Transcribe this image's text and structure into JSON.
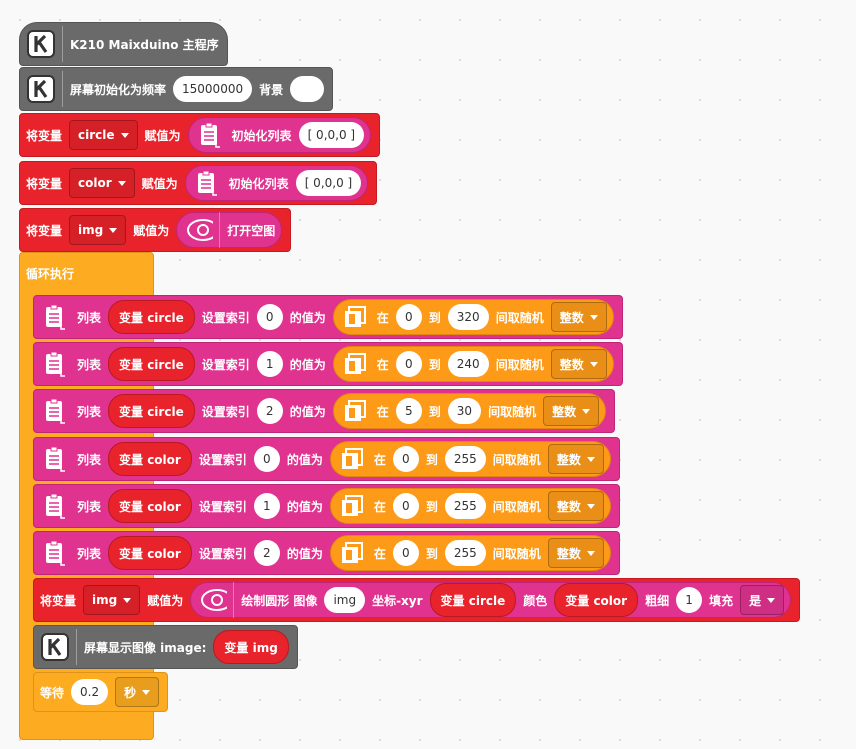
{
  "program": {
    "hat": [
      "K210 Maixduino 主程序"
    ],
    "statements": [
      [
        "屏幕初始化为频率",
        15000000,
        "背景"
      ],
      [
        "将变量",
        "circle",
        "赋值为",
        "初始化列表",
        "[ 0,0,0 ]"
      ],
      [
        "将变量",
        "color",
        "赋值为",
        "初始化列表",
        "[ 0,0,0 ]"
      ],
      [
        "将变量",
        "img",
        "赋值为",
        "打开空图"
      ]
    ],
    "loop": {
      "label": "循环执行",
      "body": [
        [
          "列表",
          "变量 circle",
          "设置索引",
          0,
          "的值为",
          "在",
          0,
          "到",
          320,
          "间取随机",
          "整数"
        ],
        [
          "列表",
          "变量 circle",
          "设置索引",
          1,
          "的值为",
          "在",
          0,
          "到",
          240,
          "间取随机",
          "整数"
        ],
        [
          "列表",
          "变量 circle",
          "设置索引",
          2,
          "的值为",
          "在",
          5,
          "到",
          30,
          "间取随机",
          "整数"
        ],
        [
          "列表",
          "变量 color",
          "设置索引",
          0,
          "的值为",
          "在",
          0,
          "到",
          255,
          "间取随机",
          "整数"
        ],
        [
          "列表",
          "变量 color",
          "设置索引",
          1,
          "的值为",
          "在",
          0,
          "到",
          255,
          "间取随机",
          "整数"
        ],
        [
          "列表",
          "变量 color",
          "设置索引",
          2,
          "的值为",
          "在",
          0,
          "到",
          255,
          "间取随机",
          "整数"
        ],
        [
          "将变量",
          "img",
          "赋值为",
          "绘制圆形 图像",
          "img",
          "坐标-xyr",
          "变量 circle",
          "颜色",
          "变量 color",
          "粗细",
          1,
          "填充",
          "是"
        ],
        [
          "屏幕显示图像 image:",
          "变量 img"
        ],
        [
          "等待",
          0.2,
          "秒"
        ]
      ]
    }
  }
}
